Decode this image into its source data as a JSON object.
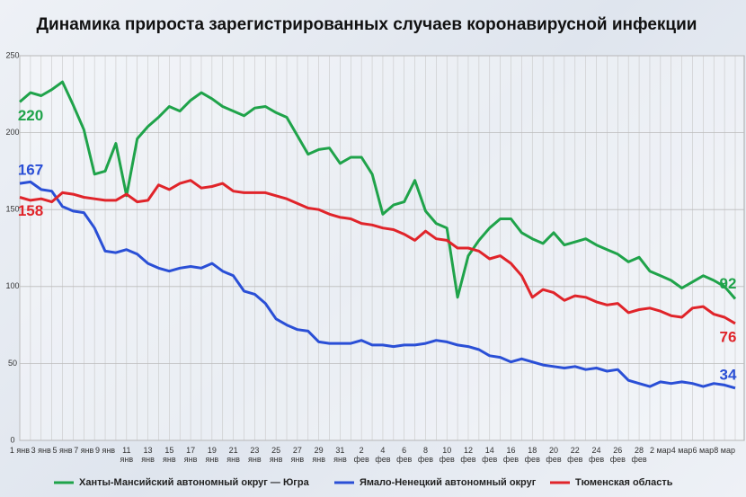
{
  "chart_data": {
    "type": "line",
    "title": "Динамика прироста зарегистрированных случаев коронавирусной инфекции",
    "categories": [
      "1 янв",
      null,
      "3 янв",
      null,
      "5 янв",
      null,
      "7 янв",
      null,
      "9 янв",
      null,
      "11 янв",
      null,
      "13 янв",
      null,
      "15 янв",
      null,
      "17 янв",
      null,
      "19 янв",
      null,
      "21 янв",
      null,
      "23 янв",
      null,
      "25 янв",
      null,
      "27 янв",
      null,
      "29 янв",
      null,
      "31 янв",
      null,
      "2 фев",
      null,
      "4 фев",
      null,
      "6 фев",
      null,
      "8 фев",
      null,
      "10 фев",
      null,
      "12 фев",
      null,
      "14 фев",
      null,
      "16 фев",
      null,
      "18 фев",
      null,
      "20 фев",
      null,
      "22 фев",
      null,
      "24 фев",
      null,
      "26 фев",
      null,
      "28 фев",
      null,
      "2 мар",
      null,
      "4 мар",
      null,
      "6 мар",
      null,
      "8 мар",
      null
    ],
    "series": [
      {
        "name": "Ханты-Мансийский автономный округ — Югра",
        "color": "#1fa34a",
        "values": [
          220,
          226,
          224,
          228,
          233,
          218,
          202,
          173,
          175,
          193,
          159,
          196,
          204,
          210,
          217,
          214,
          221,
          226,
          222,
          217,
          214,
          211,
          216,
          217,
          213,
          210,
          198,
          186,
          189,
          190,
          180,
          184,
          184,
          173,
          147,
          153,
          155,
          169,
          149,
          141,
          138,
          93,
          120,
          130,
          138,
          144,
          144,
          135,
          131,
          128,
          135,
          127,
          129,
          131,
          127,
          124,
          121,
          116,
          119,
          110,
          107,
          104,
          99,
          103,
          107,
          104,
          100,
          92
        ]
      },
      {
        "name": "Ямало-Ненецкий автономный округ",
        "color": "#2a4fd6",
        "values": [
          167,
          168,
          163,
          162,
          152,
          149,
          148,
          138,
          123,
          122,
          124,
          121,
          115,
          112,
          110,
          112,
          113,
          112,
          115,
          110,
          107,
          97,
          95,
          89,
          79,
          75,
          72,
          71,
          64,
          63,
          63,
          63,
          65,
          62,
          62,
          61,
          62,
          62,
          63,
          65,
          64,
          62,
          61,
          59,
          55,
          54,
          51,
          53,
          51,
          49,
          48,
          47,
          48,
          46,
          47,
          45,
          46,
          39,
          37,
          35,
          38,
          37,
          38,
          37,
          35,
          37,
          36,
          34
        ]
      },
      {
        "name": "Тюменская область",
        "color": "#e0242a",
        "values": [
          158,
          156,
          157,
          155,
          161,
          160,
          158,
          157,
          156,
          156,
          160,
          155,
          156,
          166,
          163,
          167,
          169,
          164,
          165,
          167,
          162,
          161,
          161,
          161,
          159,
          157,
          154,
          151,
          150,
          147,
          145,
          144,
          141,
          140,
          138,
          137,
          134,
          130,
          136,
          131,
          130,
          125,
          125,
          123,
          118,
          120,
          115,
          107,
          93,
          98,
          96,
          91,
          94,
          93,
          90,
          88,
          89,
          83,
          85,
          86,
          84,
          81,
          80,
          86,
          87,
          82,
          80,
          76
        ]
      }
    ],
    "ylim": [
      0,
      250
    ],
    "yticks": [
      0,
      50,
      100,
      150,
      200,
      250
    ],
    "grid": true
  }
}
